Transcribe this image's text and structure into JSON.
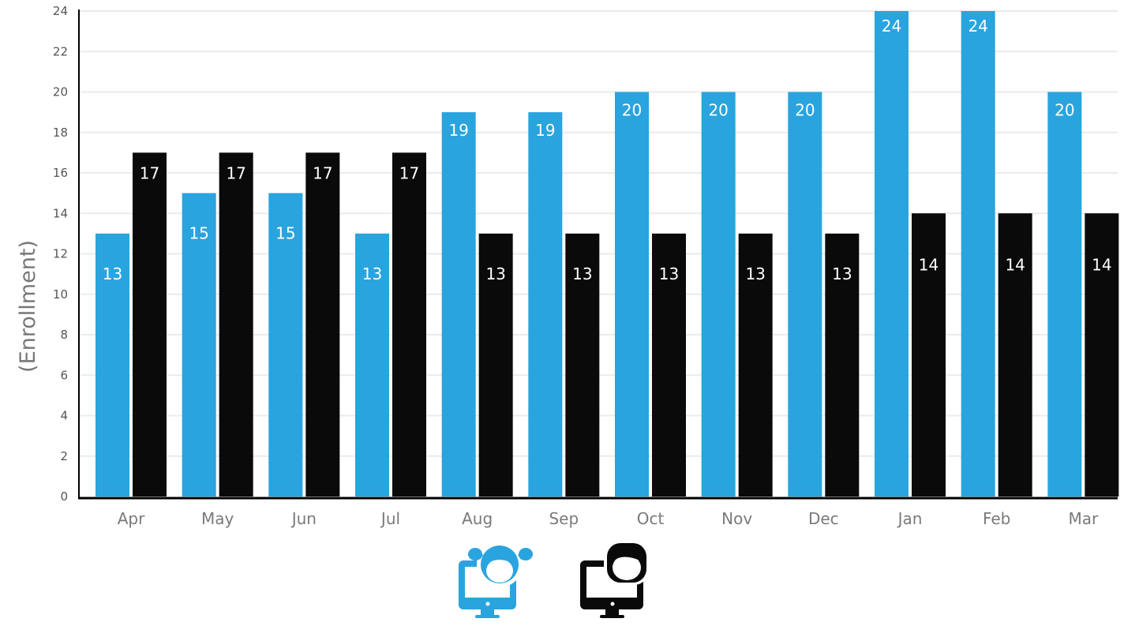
{
  "chart_data": {
    "type": "bar",
    "categories": [
      "Apr",
      "May",
      "Jun",
      "Jul",
      "Aug",
      "Sep",
      "Oct",
      "Nov",
      "Dec",
      "Jan",
      "Feb",
      "Mar"
    ],
    "series": [
      {
        "values": [
          13,
          15,
          15,
          13,
          19,
          19,
          20,
          20,
          20,
          24,
          24,
          20
        ],
        "color": "#29a4de",
        "legend_icon": "girl-computer-icon"
      },
      {
        "values": [
          17,
          17,
          17,
          17,
          13,
          13,
          13,
          13,
          13,
          14,
          14,
          14
        ],
        "color": "#0a0a0a",
        "legend_icon": "boy-computer-icon"
      }
    ],
    "ylabel": "(Enrollment)",
    "ylim": [
      0,
      24
    ],
    "yticks": [
      0,
      2,
      4,
      6,
      8,
      10,
      12,
      14,
      16,
      18,
      20,
      22,
      24
    ],
    "grid": true,
    "legend_placement": "bottom-center",
    "data_labels": true
  }
}
